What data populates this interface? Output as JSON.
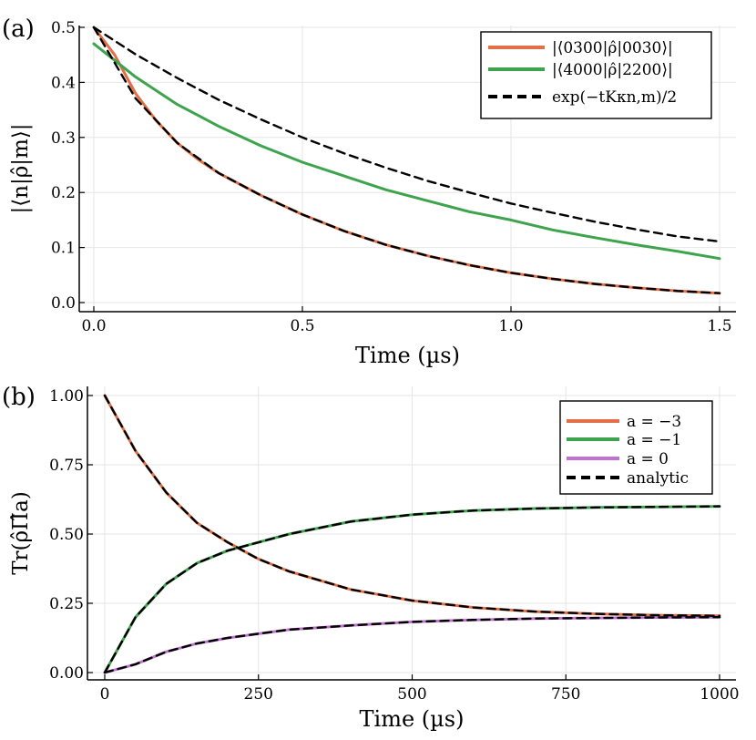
{
  "figure": {
    "panel_labels": [
      "(a)",
      "(b)"
    ]
  },
  "chart_data": [
    {
      "type": "line",
      "panel": "(a)",
      "xlabel": "Time (µs)",
      "ylabel": "|⟨n|ρ̂|m⟩|",
      "xlim": [
        0,
        1.5
      ],
      "ylim": [
        0,
        0.5
      ],
      "xticks": [
        0,
        0.5,
        1,
        1.5
      ],
      "xticklabels": [
        "0.0",
        "0.5",
        "1.0",
        "1.5"
      ],
      "yticks": [
        0,
        0.1,
        0.2,
        0.3,
        0.4,
        0.5
      ],
      "yticklabels": [
        "0.0",
        "0.1",
        "0.2",
        "0.3",
        "0.4",
        "0.5"
      ],
      "grid": true,
      "legend_position": "top-right",
      "series": [
        {
          "name": "|⟨0300|ρ̂|0030⟩|",
          "color": "#e26f46",
          "style": "solid",
          "x": [
            0,
            0.05,
            0.1,
            0.15,
            0.2,
            0.25,
            0.3,
            0.4,
            0.5,
            0.6,
            0.7,
            0.8,
            0.9,
            1.0,
            1.1,
            1.2,
            1.3,
            1.4,
            1.5
          ],
          "y": [
            0.5,
            0.45,
            0.38,
            0.33,
            0.29,
            0.26,
            0.235,
            0.195,
            0.16,
            0.13,
            0.105,
            0.085,
            0.068,
            0.054,
            0.043,
            0.034,
            0.027,
            0.021,
            0.017
          ]
        },
        {
          "name": "|⟨4000|ρ̂|2200⟩|",
          "color": "#3da44d",
          "style": "solid",
          "x": [
            0,
            0.05,
            0.1,
            0.15,
            0.2,
            0.25,
            0.3,
            0.4,
            0.5,
            0.6,
            0.7,
            0.8,
            0.9,
            1.0,
            1.1,
            1.2,
            1.3,
            1.4,
            1.5
          ],
          "y": [
            0.47,
            0.44,
            0.41,
            0.385,
            0.36,
            0.34,
            0.32,
            0.285,
            0.255,
            0.23,
            0.205,
            0.185,
            0.165,
            0.15,
            0.132,
            0.118,
            0.105,
            0.093,
            0.08
          ]
        },
        {
          "name": "exp(−tKκn,m)/2",
          "color": "#000000",
          "style": "dashed",
          "x": [
            0,
            0.1,
            0.2,
            0.3,
            0.4,
            0.5,
            0.6,
            0.7,
            0.8,
            0.9,
            1.0,
            1.1,
            1.2,
            1.3,
            1.4,
            1.5
          ],
          "y": [
            0.5,
            0.451,
            0.408,
            0.368,
            0.333,
            0.3,
            0.271,
            0.245,
            0.221,
            0.2,
            0.18,
            0.163,
            0.147,
            0.133,
            0.12,
            0.111
          ]
        },
        {
          "name": "",
          "color": "#000000",
          "style": "dashed",
          "x": [
            0,
            0.1,
            0.2,
            0.3,
            0.4,
            0.5,
            0.6,
            0.7,
            0.8,
            0.9,
            1.0,
            1.1,
            1.2,
            1.3,
            1.4,
            1.5
          ],
          "y": [
            0.5,
            0.371,
            0.29,
            0.235,
            0.195,
            0.16,
            0.13,
            0.105,
            0.085,
            0.068,
            0.054,
            0.043,
            0.034,
            0.027,
            0.021,
            0.017
          ]
        }
      ]
    },
    {
      "type": "line",
      "panel": "(b)",
      "xlabel": "Time (µs)",
      "ylabel": "Tr(ρ̂Π̂a)",
      "xlim": [
        0,
        1000
      ],
      "ylim": [
        0,
        1
      ],
      "xticks": [
        0,
        250,
        500,
        750,
        1000
      ],
      "xticklabels": [
        "0",
        "250",
        "500",
        "750",
        "1000"
      ],
      "yticks": [
        0,
        0.25,
        0.5,
        0.75,
        1
      ],
      "yticklabels": [
        "0.00",
        "0.25",
        "0.50",
        "0.75",
        "1.00"
      ],
      "grid": true,
      "legend_position": "top-right",
      "series": [
        {
          "name": "a = −3",
          "color": "#e26f46",
          "style": "solid",
          "x": [
            0,
            50,
            100,
            150,
            200,
            250,
            300,
            400,
            500,
            600,
            700,
            800,
            900,
            1000
          ],
          "y": [
            1.0,
            0.8,
            0.65,
            0.54,
            0.47,
            0.41,
            0.365,
            0.3,
            0.26,
            0.235,
            0.22,
            0.212,
            0.207,
            0.205
          ]
        },
        {
          "name": "a = −1",
          "color": "#3da44d",
          "style": "solid",
          "x": [
            0,
            50,
            100,
            150,
            200,
            250,
            300,
            400,
            500,
            600,
            700,
            800,
            900,
            1000
          ],
          "y": [
            0.0,
            0.2,
            0.32,
            0.395,
            0.44,
            0.47,
            0.5,
            0.545,
            0.57,
            0.585,
            0.592,
            0.596,
            0.598,
            0.6
          ]
        },
        {
          "name": "a = 0",
          "color": "#c271d2",
          "style": "solid",
          "x": [
            0,
            50,
            100,
            150,
            200,
            250,
            300,
            400,
            500,
            600,
            700,
            800,
            900,
            1000
          ],
          "y": [
            0.0,
            0.03,
            0.075,
            0.105,
            0.125,
            0.14,
            0.155,
            0.17,
            0.183,
            0.19,
            0.195,
            0.197,
            0.199,
            0.2
          ]
        },
        {
          "name": "analytic",
          "color": "#000000",
          "style": "dashed",
          "x": [
            0,
            50,
            100,
            150,
            200,
            250,
            300,
            400,
            500,
            600,
            700,
            800,
            900,
            1000
          ],
          "y": [
            1.0,
            0.8,
            0.65,
            0.54,
            0.47,
            0.41,
            0.365,
            0.3,
            0.26,
            0.235,
            0.22,
            0.212,
            0.207,
            0.205
          ]
        },
        {
          "name": "",
          "color": "#000000",
          "style": "dashed",
          "x": [
            0,
            50,
            100,
            150,
            200,
            250,
            300,
            400,
            500,
            600,
            700,
            800,
            900,
            1000
          ],
          "y": [
            0.0,
            0.2,
            0.32,
            0.395,
            0.44,
            0.47,
            0.5,
            0.545,
            0.57,
            0.585,
            0.592,
            0.596,
            0.598,
            0.6
          ]
        },
        {
          "name": "",
          "color": "#000000",
          "style": "dashed",
          "x": [
            0,
            50,
            100,
            150,
            200,
            250,
            300,
            400,
            500,
            600,
            700,
            800,
            900,
            1000
          ],
          "y": [
            0.0,
            0.03,
            0.075,
            0.105,
            0.125,
            0.14,
            0.155,
            0.17,
            0.183,
            0.19,
            0.195,
            0.197,
            0.199,
            0.2
          ]
        }
      ]
    }
  ]
}
